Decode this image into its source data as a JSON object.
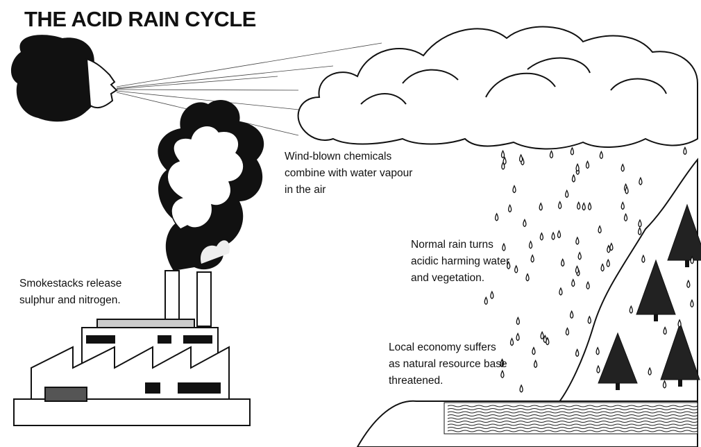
{
  "title": "THE ACID RAIN CYCLE",
  "captions": [
    {
      "lines": [
        "Wind-blown chemicals",
        "combine with water vapour",
        "in the air"
      ]
    },
    {
      "lines": [
        "Normal rain turns",
        "acidic harming water",
        "and vegetation."
      ]
    },
    {
      "lines": [
        "Smokestacks release",
        "sulphur and nitrogen."
      ]
    },
    {
      "lines": [
        "Local economy suffers",
        "as natural resource base",
        "threatened."
      ]
    }
  ]
}
